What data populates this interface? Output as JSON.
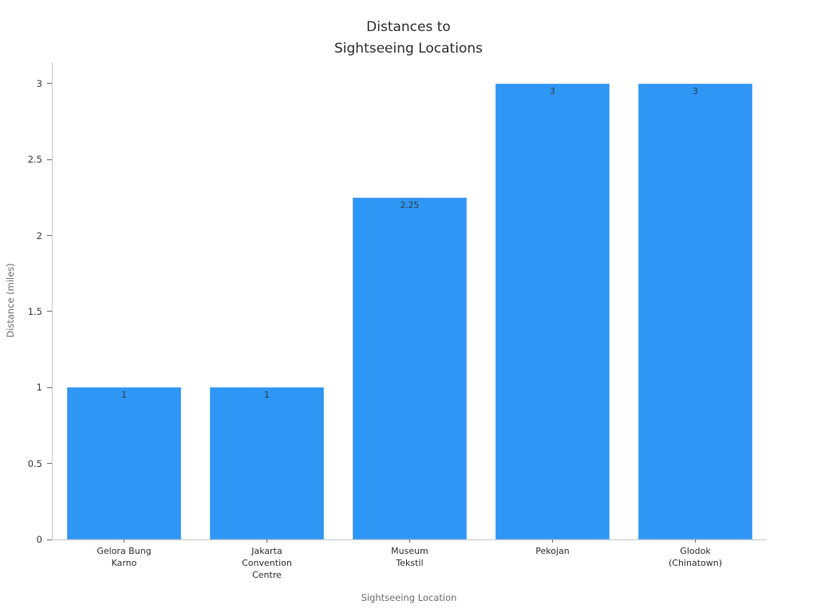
{
  "chart": {
    "title": "Distances to\nSightseeing Locations",
    "xlabel": "Sightseeing Location",
    "ylabel": "Distance (miles)"
  },
  "chart_data": {
    "type": "bar",
    "title": "Distances to Sightseeing Locations",
    "xlabel": "Sightseeing Location",
    "ylabel": "Distance (miles)",
    "categories": [
      "Gelora Bung\nKarno",
      "Jakarta\nConvention\nCentre",
      "Museum\nTekstil",
      "Pekojan",
      "Glodok\n(Chinatown)"
    ],
    "values": [
      1,
      1,
      2.25,
      3,
      3
    ],
    "value_labels": [
      "1",
      "1",
      "2.25",
      "3",
      "3"
    ],
    "yticks": [
      0,
      0.5,
      1,
      1.5,
      2,
      2.5,
      3
    ],
    "ytick_labels": [
      "0",
      "0.5",
      "1",
      "1.5",
      "2",
      "2.5",
      "3"
    ],
    "ylim": [
      0,
      3.1416
    ],
    "grid": false,
    "legend": false,
    "bar_width_fraction": 0.8,
    "colors": {
      "bar_fill": "#2e96f5",
      "bar_edge": "#5fa9f2",
      "value_label": "#33383d",
      "title_text": "#2f2f2f",
      "tick_label": "#3a3a3a",
      "axis_title": "#6e6e6e",
      "spine": "#c9c9c9",
      "tick_mark": "#6f6f6f",
      "background": "#ffffff"
    }
  }
}
